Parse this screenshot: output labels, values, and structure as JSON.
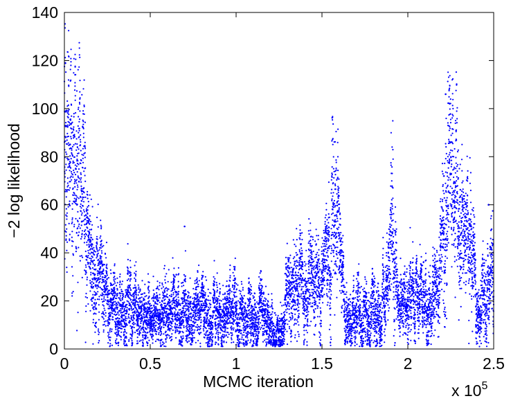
{
  "chart_data": {
    "type": "scatter",
    "title": "",
    "xlabel": "MCMC iteration",
    "ylabel": "−2 log likelihood",
    "x_multiplier_label": "x 10",
    "x_multiplier_exponent": "5",
    "xlim": [
      0,
      2.5
    ],
    "ylim": [
      0,
      140
    ],
    "x_units_note": "x values in units of 10^5 iterations",
    "xticks": [
      0,
      0.5,
      1,
      1.5,
      2,
      2.5
    ],
    "xtick_labels": [
      "0",
      "0.5",
      "1",
      "1.5",
      "2",
      "2.5"
    ],
    "yticks": [
      0,
      20,
      40,
      60,
      80,
      100,
      120,
      140
    ],
    "ytick_labels": [
      "0",
      "20",
      "40",
      "60",
      "80",
      "100",
      "120",
      "140"
    ],
    "grid": false,
    "marker_color": "#0000ff",
    "trace_profile": {
      "x": [
        0,
        0.005,
        0.01,
        0.02,
        0.04,
        0.06,
        0.08,
        0.09,
        0.1,
        0.12,
        0.13,
        0.15,
        0.17,
        0.19,
        0.2,
        0.22,
        0.25,
        0.3,
        0.35,
        0.37,
        0.4,
        0.45,
        0.5,
        0.55,
        0.6,
        0.65,
        0.7,
        0.75,
        0.8,
        0.85,
        0.9,
        0.95,
        1.0,
        1.05,
        1.1,
        1.15,
        1.2,
        1.25,
        1.28,
        1.31,
        1.35,
        1.4,
        1.45,
        1.48,
        1.5,
        1.53,
        1.56,
        1.58,
        1.6,
        1.63,
        1.66,
        1.7,
        1.75,
        1.8,
        1.85,
        1.88,
        1.91,
        1.93,
        1.95,
        2.0,
        2.05,
        2.1,
        2.15,
        2.18,
        2.2,
        2.22,
        2.24,
        2.26,
        2.28,
        2.3,
        2.32,
        2.35,
        2.38,
        2.4,
        2.42,
        2.45,
        2.48,
        2.5
      ],
      "y": [
        95,
        105,
        85,
        78,
        78,
        72,
        80,
        75,
        70,
        62,
        48,
        30,
        30,
        33,
        38,
        25,
        18,
        14,
        13,
        22,
        14,
        12,
        13,
        14,
        15,
        16,
        16,
        17,
        15,
        13,
        12,
        14,
        15,
        13,
        14,
        12,
        9,
        7,
        10,
        27,
        27,
        22,
        28,
        30,
        22,
        34,
        50,
        62,
        44,
        18,
        10,
        13,
        15,
        16,
        17,
        28,
        54,
        30,
        18,
        18,
        17,
        20,
        18,
        27,
        50,
        68,
        75,
        70,
        60,
        52,
        45,
        45,
        40,
        22,
        10,
        25,
        32,
        28
      ]
    },
    "outliers": [
      {
        "x": 0.005,
        "y": 119
      },
      {
        "x": 0.7,
        "y": 51
      },
      {
        "x": 2.22,
        "y": 106
      },
      {
        "x": 2.47,
        "y": 60
      }
    ]
  }
}
